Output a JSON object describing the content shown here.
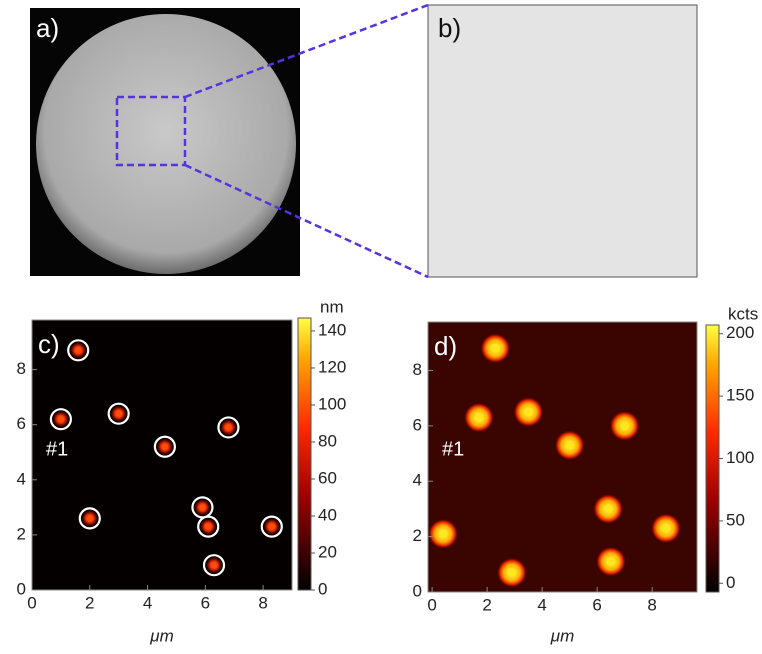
{
  "images": [
    {
      "label": "a)"
    },
    {
      "label": "b)"
    }
  ],
  "chart_data": [
    {
      "type": "scatter",
      "label": "c)",
      "annotation": "#1",
      "xlabel": "μm",
      "xlim": [
        0,
        9
      ],
      "ylim": [
        0,
        9.8
      ],
      "xticks": [
        0,
        2,
        4,
        6,
        8
      ],
      "yticks": [
        0,
        2,
        4,
        6,
        8
      ],
      "x": [
        1.6,
        1.0,
        3.0,
        4.6,
        6.8,
        2.0,
        5.9,
        6.1,
        8.3,
        6.3
      ],
      "y": [
        8.7,
        6.2,
        6.4,
        5.2,
        5.9,
        2.6,
        3.0,
        2.3,
        2.3,
        0.9
      ],
      "color": "#ff4a10",
      "colorbar": {
        "unit": "nm",
        "lim": [
          0,
          147
        ],
        "ticks": [
          0,
          20,
          40,
          60,
          80,
          100,
          120,
          140
        ]
      }
    },
    {
      "type": "scatter",
      "label": "d)",
      "annotation": "#1",
      "xlabel": "μm",
      "xlim": [
        -0.15,
        9.63
      ],
      "ylim": [
        0,
        9.75
      ],
      "xticks": [
        0,
        2,
        4,
        6,
        8
      ],
      "yticks": [
        0,
        2,
        4,
        6,
        8
      ],
      "x": [
        2.3,
        1.7,
        3.5,
        5.0,
        7.0,
        0.4,
        6.5,
        8.5,
        2.9,
        6.4
      ],
      "y": [
        8.8,
        6.3,
        6.5,
        5.3,
        6.0,
        2.1,
        1.1,
        2.3,
        0.7,
        3.0
      ],
      "color": "#ffe81a",
      "colorbar": {
        "unit": "kcts",
        "lim": [
          -7,
          207
        ],
        "ticks": [
          0,
          50,
          100,
          150,
          200
        ]
      }
    }
  ]
}
